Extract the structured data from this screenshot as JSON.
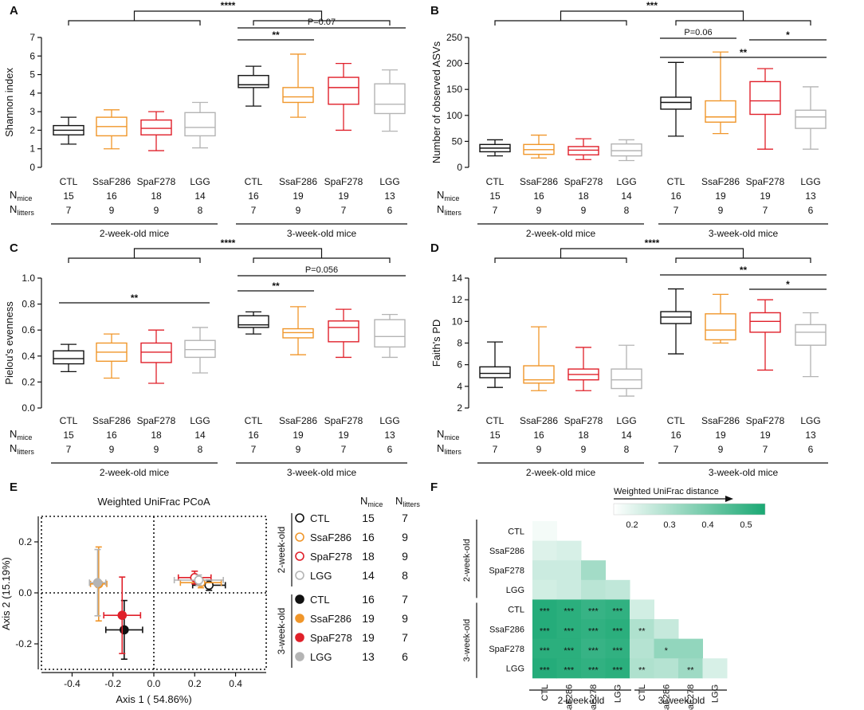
{
  "colors": {
    "CTL": "#111111",
    "SsaF286": "#f0962a",
    "SpaF278": "#e0202a",
    "LGG": "#b4b4b4",
    "heat_low": "#ffffff",
    "heat_high": "#1aa873"
  },
  "common": {
    "groups": [
      "CTL",
      "SsaF286",
      "SpaF278",
      "LGG",
      "CTL",
      "SsaF286",
      "SpaF278",
      "LGG"
    ],
    "n_mice_main": "N",
    "n_mice_sub": "mice",
    "n_litters_main": "N",
    "n_litters_sub": "litters",
    "n_mice": [
      "15",
      "16",
      "18",
      "14",
      "16",
      "19",
      "19",
      "13"
    ],
    "n_litters": [
      "7",
      "9",
      "9",
      "8",
      "7",
      "9",
      "7",
      "6"
    ],
    "age_2wk": "2-week-old mice",
    "age_3wk": "3-week-old mice"
  },
  "chart_data": [
    {
      "panel": "A",
      "type": "box",
      "ylabel": "Shannon index",
      "ylim": [
        0,
        7
      ],
      "yticks": [
        "0",
        "1",
        "2",
        "3",
        "4",
        "5",
        "6",
        "7"
      ],
      "boxes": [
        {
          "group": "CTL",
          "min": 1.25,
          "q1": 1.75,
          "median": 2.0,
          "q3": 2.25,
          "max": 2.7
        },
        {
          "group": "SsaF286",
          "min": 1.0,
          "q1": 1.7,
          "median": 2.2,
          "q3": 2.7,
          "max": 3.1
        },
        {
          "group": "SpaF278",
          "min": 0.9,
          "q1": 1.75,
          "median": 2.1,
          "q3": 2.55,
          "max": 3.0
        },
        {
          "group": "LGG",
          "min": 1.05,
          "q1": 1.7,
          "median": 2.15,
          "q3": 2.95,
          "max": 3.5
        },
        {
          "group": "CTL",
          "min": 3.3,
          "q1": 4.3,
          "median": 4.45,
          "q3": 4.95,
          "max": 5.45
        },
        {
          "group": "SsaF286",
          "min": 2.7,
          "q1": 3.5,
          "median": 3.8,
          "q3": 4.3,
          "max": 6.1
        },
        {
          "group": "SpaF278",
          "min": 2.0,
          "q1": 3.4,
          "median": 4.3,
          "q3": 4.85,
          "max": 5.6
        },
        {
          "group": "LGG",
          "min": 1.95,
          "q1": 2.9,
          "median": 3.4,
          "q3": 4.5,
          "max": 5.25
        }
      ],
      "sig": [
        {
          "from": 0,
          "to": 7,
          "label": "****"
        },
        {
          "from": 4,
          "to": 7,
          "label": "P=0.07"
        },
        {
          "from": 4,
          "to": 5,
          "label": "**"
        }
      ]
    },
    {
      "panel": "B",
      "type": "box",
      "ylabel": "Number of observed ASVs",
      "ylim": [
        0,
        250
      ],
      "yticks": [
        "0",
        "50",
        "100",
        "150",
        "200",
        "250"
      ],
      "boxes": [
        {
          "group": "CTL",
          "min": 22,
          "q1": 30,
          "median": 37,
          "q3": 44,
          "max": 53
        },
        {
          "group": "SsaF286",
          "min": 18,
          "q1": 25,
          "median": 34,
          "q3": 44,
          "max": 62
        },
        {
          "group": "SpaF278",
          "min": 15,
          "q1": 24,
          "median": 33,
          "q3": 40,
          "max": 55
        },
        {
          "group": "LGG",
          "min": 13,
          "q1": 22,
          "median": 32,
          "q3": 45,
          "max": 53
        },
        {
          "group": "CTL",
          "min": 60,
          "q1": 112,
          "median": 125,
          "q3": 135,
          "max": 202
        },
        {
          "group": "SsaF286",
          "min": 65,
          "q1": 87,
          "median": 97,
          "q3": 128,
          "max": 222
        },
        {
          "group": "SpaF278",
          "min": 35,
          "q1": 102,
          "median": 128,
          "q3": 165,
          "max": 190
        },
        {
          "group": "LGG",
          "min": 35,
          "q1": 75,
          "median": 97,
          "q3": 110,
          "max": 155
        }
      ],
      "sig": [
        {
          "from": 0,
          "to": 7,
          "label": "***"
        },
        {
          "from": 4,
          "to": 5,
          "label": "P=0.06"
        },
        {
          "from": 4,
          "to": 7,
          "label": "**"
        },
        {
          "from": 6,
          "to": 7,
          "label": "*"
        }
      ]
    },
    {
      "panel": "C",
      "type": "box",
      "ylabel": "Pielou's evenness",
      "ylim": [
        0,
        1.0
      ],
      "yticks": [
        "0.0",
        "0.2",
        "0.4",
        "0.6",
        "0.8",
        "1.0"
      ],
      "boxes": [
        {
          "group": "CTL",
          "min": 0.28,
          "q1": 0.34,
          "median": 0.38,
          "q3": 0.44,
          "max": 0.49
        },
        {
          "group": "SsaF286",
          "min": 0.23,
          "q1": 0.36,
          "median": 0.43,
          "q3": 0.5,
          "max": 0.57
        },
        {
          "group": "SpaF278",
          "min": 0.19,
          "q1": 0.35,
          "median": 0.43,
          "q3": 0.5,
          "max": 0.6
        },
        {
          "group": "LGG",
          "min": 0.27,
          "q1": 0.39,
          "median": 0.45,
          "q3": 0.52,
          "max": 0.62
        },
        {
          "group": "CTL",
          "min": 0.57,
          "q1": 0.62,
          "median": 0.64,
          "q3": 0.71,
          "max": 0.74
        },
        {
          "group": "SsaF286",
          "min": 0.41,
          "q1": 0.54,
          "median": 0.58,
          "q3": 0.61,
          "max": 0.78
        },
        {
          "group": "SpaF278",
          "min": 0.39,
          "q1": 0.51,
          "median": 0.62,
          "q3": 0.67,
          "max": 0.76
        },
        {
          "group": "LGG",
          "min": 0.39,
          "q1": 0.47,
          "median": 0.55,
          "q3": 0.68,
          "max": 0.72
        }
      ],
      "sig": [
        {
          "from": 0,
          "to": 7,
          "label": "****"
        },
        {
          "from": 4,
          "to": 7,
          "label": "P=0.056"
        },
        {
          "from": 4,
          "to": 5,
          "label": "**"
        },
        {
          "from": 0,
          "to": 3,
          "label": "**"
        }
      ]
    },
    {
      "panel": "D",
      "type": "box",
      "ylabel": "Faith's PD",
      "ylim": [
        2,
        14
      ],
      "yticks": [
        "2",
        "4",
        "6",
        "8",
        "10",
        "12",
        "14"
      ],
      "boxes": [
        {
          "group": "CTL",
          "min": 3.9,
          "q1": 4.8,
          "median": 5.2,
          "q3": 5.8,
          "max": 8.1
        },
        {
          "group": "SsaF286",
          "min": 3.6,
          "q1": 4.3,
          "median": 4.6,
          "q3": 5.9,
          "max": 9.5
        },
        {
          "group": "SpaF278",
          "min": 3.6,
          "q1": 4.6,
          "median": 5.1,
          "q3": 5.6,
          "max": 7.6
        },
        {
          "group": "LGG",
          "min": 3.1,
          "q1": 3.8,
          "median": 4.6,
          "q3": 5.6,
          "max": 7.8
        },
        {
          "group": "CTL",
          "min": 7.0,
          "q1": 9.8,
          "median": 10.4,
          "q3": 10.9,
          "max": 13.0
        },
        {
          "group": "SsaF286",
          "min": 8.0,
          "q1": 8.3,
          "median": 9.2,
          "q3": 10.7,
          "max": 12.5
        },
        {
          "group": "SpaF278",
          "min": 5.5,
          "q1": 9.0,
          "median": 10.0,
          "q3": 10.8,
          "max": 12.0
        },
        {
          "group": "LGG",
          "min": 4.9,
          "q1": 7.8,
          "median": 9.0,
          "q3": 9.7,
          "max": 10.8
        }
      ],
      "sig": [
        {
          "from": 0,
          "to": 7,
          "label": "****"
        },
        {
          "from": 4,
          "to": 7,
          "label": "**"
        },
        {
          "from": 6,
          "to": 7,
          "label": "*"
        }
      ]
    },
    {
      "panel": "E",
      "type": "scatter",
      "title": "Weighted UniFrac PCoA",
      "xlabel": "Axis 1 ( 54.86%)",
      "ylabel": "Axis 2 (15.19%)",
      "xlim": [
        -0.55,
        0.55
      ],
      "ylim": [
        -0.3,
        0.3
      ],
      "xticks": [
        "-0.4",
        "-0.2",
        "0.0",
        "0.2",
        "0.4"
      ],
      "yticks": [
        "-0.2",
        "0.0",
        "0.2"
      ],
      "points": [
        {
          "group": "CTL",
          "age": "2-week-old",
          "filled": false,
          "x": 0.27,
          "y": 0.03,
          "xerr": 0.08,
          "yerr": 0.02
        },
        {
          "group": "SsaF286",
          "age": "2-week-old",
          "filled": false,
          "x": 0.23,
          "y": 0.04,
          "xerr": 0.1,
          "yerr": 0.02
        },
        {
          "group": "SpaF278",
          "age": "2-week-old",
          "filled": false,
          "x": 0.2,
          "y": 0.06,
          "xerr": 0.08,
          "yerr": 0.025
        },
        {
          "group": "LGG",
          "age": "2-week-old",
          "filled": false,
          "x": 0.22,
          "y": 0.05,
          "xerr": 0.12,
          "yerr": 0.02
        },
        {
          "group": "CTL",
          "age": "3-week-old",
          "filled": true,
          "x": -0.145,
          "y": -0.145,
          "xerr": 0.09,
          "yerr": 0.115
        },
        {
          "group": "SsaF286",
          "age": "3-week-old",
          "filled": true,
          "x": -0.27,
          "y": 0.035,
          "xerr": 0.04,
          "yerr": 0.145
        },
        {
          "group": "SpaF278",
          "age": "3-week-old",
          "filled": true,
          "x": -0.155,
          "y": -0.088,
          "xerr": 0.09,
          "yerr": 0.15
        },
        {
          "group": "LGG",
          "age": "3-week-old",
          "filled": true,
          "x": -0.275,
          "y": 0.04,
          "xerr": 0.04,
          "yerr": 0.13
        }
      ],
      "legend": {
        "age_2wk": "2-week-old",
        "age_3wk": "3-week-old",
        "header_mice": "N",
        "header_mice_sub": "mice",
        "header_litters": "N",
        "header_litters_sub": "litters"
      }
    },
    {
      "panel": "F",
      "type": "heatmap",
      "colorbar_title": "Weighted UniFrac distance",
      "colorbar_ticks": [
        "0.2",
        "0.3",
        "0.4",
        "0.5"
      ],
      "range": [
        0.18,
        0.58
      ],
      "row_labels": [
        "CTL",
        "SsaF286",
        "SpaF278",
        "LGG",
        "CTL",
        "SsaF286",
        "SpaF278",
        "LGG"
      ],
      "col_labels": [
        "CTL",
        "SsaF286",
        "SpaF278",
        "LGG",
        "CTL",
        "SsaF286",
        "SpaF278",
        "LGG"
      ],
      "row_group_2wk": "2-week-old",
      "row_group_3wk": "3-week-old",
      "col_group_2wk": "2-week-old",
      "col_group_3wk": "3-week-old",
      "values": [
        [
          0.2
        ],
        [
          0.24,
          0.25
        ],
        [
          0.27,
          0.27,
          0.34
        ],
        [
          0.26,
          0.27,
          0.3,
          0.29
        ],
        [
          0.56,
          0.55,
          0.53,
          0.54,
          0.26
        ],
        [
          0.56,
          0.55,
          0.54,
          0.55,
          0.32,
          0.28
        ],
        [
          0.55,
          0.55,
          0.53,
          0.54,
          0.31,
          0.37,
          0.37
        ],
        [
          0.56,
          0.55,
          0.54,
          0.55,
          0.32,
          0.31,
          0.35,
          0.25
        ]
      ],
      "stars": [
        [
          ""
        ],
        [
          "",
          ""
        ],
        [
          "",
          "",
          ""
        ],
        [
          "",
          "",
          "",
          ""
        ],
        [
          "***",
          "***",
          "***",
          "***",
          ""
        ],
        [
          "***",
          "***",
          "***",
          "***",
          "**",
          ""
        ],
        [
          "***",
          "***",
          "***",
          "***",
          "",
          "*",
          ""
        ],
        [
          "***",
          "***",
          "***",
          "***",
          "**",
          "",
          "**",
          ""
        ]
      ]
    }
  ],
  "panel_letters": [
    "A",
    "B",
    "C",
    "D",
    "E",
    "F"
  ]
}
